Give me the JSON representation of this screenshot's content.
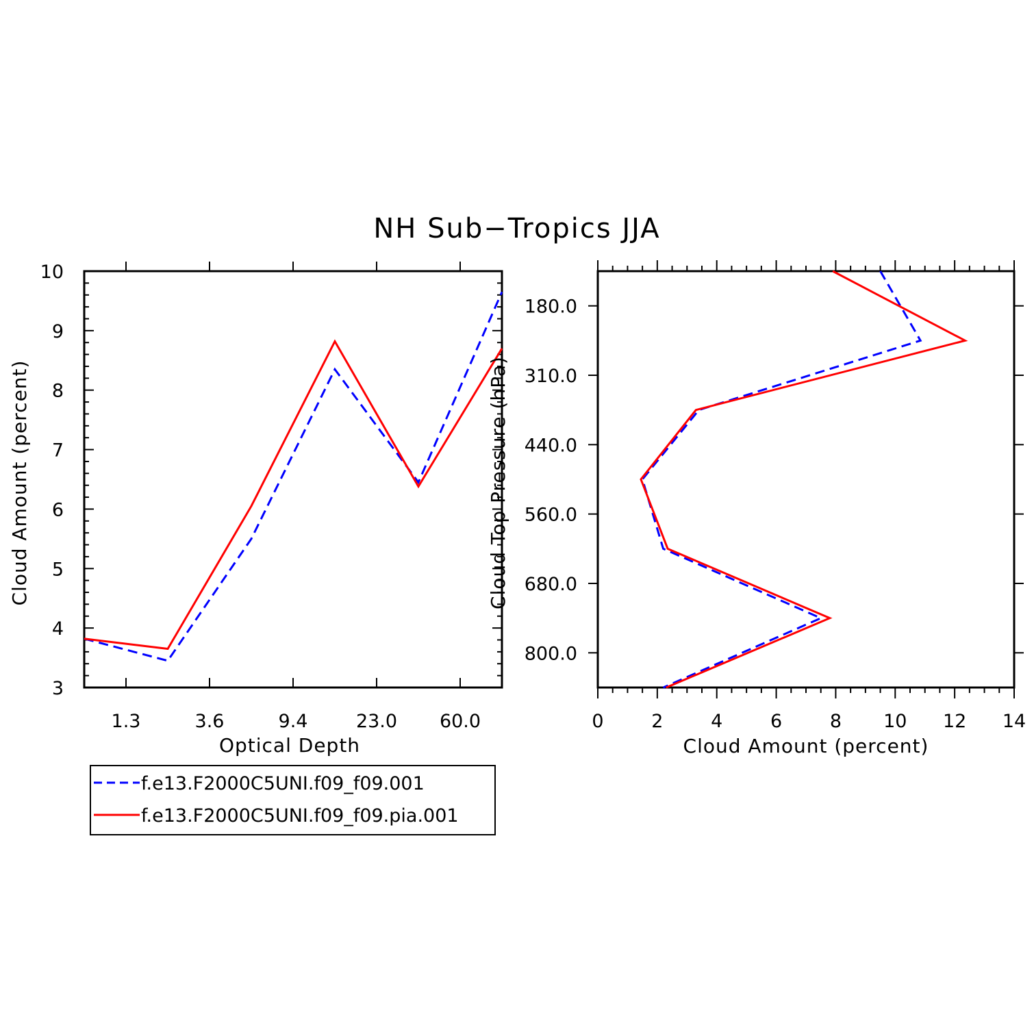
{
  "title": "NH Sub−Tropics JJA",
  "colors": {
    "series_a": "#0000ff",
    "series_b": "#ff0000",
    "axis": "#000000"
  },
  "legend": {
    "position": "bottom-left",
    "entries": [
      {
        "label": "f.e13.F2000C5UNI.f09_f09.001",
        "color": "#0000ff",
        "dash": "dashed"
      },
      {
        "label": "f.e13.F2000C5UNI.f09_f09.pia.001",
        "color": "#ff0000",
        "dash": "solid"
      }
    ]
  },
  "chart_data": [
    {
      "type": "line",
      "xlabel": "Optical Depth",
      "ylabel": "Cloud Amount (percent)",
      "x_ticks": [
        "1.3",
        "3.6",
        "9.4",
        "23.0",
        "60.0"
      ],
      "x_categories_count": 5,
      "ylim": [
        3,
        10
      ],
      "y_ticks": [
        3,
        4,
        5,
        6,
        7,
        8,
        9,
        10
      ],
      "series": [
        {
          "name": "f.e13.F2000C5UNI.f09_f09.001",
          "color": "#0000ff",
          "dash": "dashed",
          "x": [
            0.5,
            1.5,
            2.5,
            3.5,
            4.5,
            5.5
          ],
          "values": [
            3.82,
            3.45,
            5.5,
            8.35,
            6.45,
            9.65
          ]
        },
        {
          "name": "f.e13.F2000C5UNI.f09_f09.pia.001",
          "color": "#ff0000",
          "dash": "solid",
          "x": [
            0.5,
            1.5,
            2.5,
            3.5,
            4.5,
            5.5
          ],
          "values": [
            3.82,
            3.65,
            6.05,
            8.82,
            6.38,
            8.7
          ]
        }
      ],
      "xlim": [
        0.5,
        5.5
      ]
    },
    {
      "type": "line",
      "xlabel": "Cloud Amount (percent)",
      "ylabel": "Cloud Top Pressure (hPa)",
      "xlim": [
        0,
        14
      ],
      "x_ticks": [
        0,
        2,
        4,
        6,
        8,
        10,
        12,
        14
      ],
      "y_ticks": [
        "180.0",
        "310.0",
        "440.0",
        "560.0",
        "680.0",
        "800.0"
      ],
      "y_levels": [
        0,
        1,
        2,
        3,
        4,
        5,
        6
      ],
      "series": [
        {
          "name": "f.e13.F2000C5UNI.f09_f09.001",
          "color": "#0000ff",
          "dash": "dashed",
          "values": [
            9.5,
            10.85,
            3.4,
            1.5,
            2.2,
            7.5,
            2.2
          ]
        },
        {
          "name": "f.e13.F2000C5UNI.f09_f09.pia.001",
          "color": "#ff0000",
          "dash": "solid",
          "values": [
            7.9,
            12.35,
            3.3,
            1.45,
            2.35,
            7.8,
            2.3
          ]
        }
      ]
    }
  ]
}
